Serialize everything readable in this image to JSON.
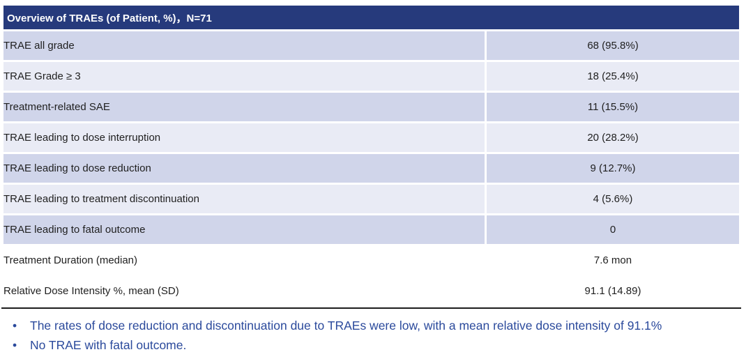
{
  "table": {
    "title": "Overview of TRAEs (of Patient, %)，N=71",
    "rows": [
      {
        "label": "TRAE all grade",
        "value": "68 (95.8%)"
      },
      {
        "label": "TRAE Grade ≥ 3",
        "value": "18 (25.4%)"
      },
      {
        "label": "Treatment-related SAE",
        "value": "11 (15.5%)"
      },
      {
        "label": "TRAE leading to dose interruption",
        "value": "20 (28.2%)"
      },
      {
        "label": "TRAE leading to dose reduction",
        "value": "9 (12.7%)"
      },
      {
        "label": "TRAE leading to treatment discontinuation",
        "value": "4 (5.6%)"
      },
      {
        "label": "TRAE leading to fatal outcome",
        "value": "0"
      },
      {
        "label": "Treatment Duration (median)",
        "value": "7.6 mon"
      },
      {
        "label": "Relative Dose Intensity %, mean (SD)",
        "value": "91.1 (14.89)"
      }
    ]
  },
  "notes": {
    "bullet_glyph": "•",
    "bullets": [
      "The rates of dose reduction and discontinuation due to TRAEs were low, with a mean relative dose intensity of 91.1%",
      "No TRAE with fatal outcome."
    ]
  },
  "colors": {
    "header_bg": "#263A7C",
    "header_text": "#FFFFFF",
    "row_alt_dark": "#D0D5EA",
    "row_alt_light": "#E9EBF5",
    "body_text": "#1F1F1F",
    "note_text": "#2B4A9C",
    "bottom_rule": "#1C1C1C"
  },
  "chart_data": {
    "type": "table",
    "title": "Overview of TRAEs (of Patient, %)，N=71",
    "n_patients": 71,
    "rows": [
      [
        "TRAE all grade",
        "68 (95.8%)"
      ],
      [
        "TRAE Grade ≥ 3",
        "18 (25.4%)"
      ],
      [
        "Treatment-related SAE",
        "11 (15.5%)"
      ],
      [
        "TRAE leading to dose interruption",
        "20 (28.2%)"
      ],
      [
        "TRAE leading to dose reduction",
        "9 (12.7%)"
      ],
      [
        "TRAE leading to treatment discontinuation",
        "4 (5.6%)"
      ],
      [
        "TRAE leading to fatal outcome",
        "0"
      ],
      [
        "Treatment Duration (median)",
        "7.6 mon"
      ],
      [
        "Relative Dose Intensity %, mean (SD)",
        "91.1 (14.89)"
      ]
    ],
    "annotations": [
      "The rates of dose reduction and discontinuation due to TRAEs were low, with a mean relative dose intensity of 91.1%",
      "No TRAE with fatal outcome."
    ]
  }
}
